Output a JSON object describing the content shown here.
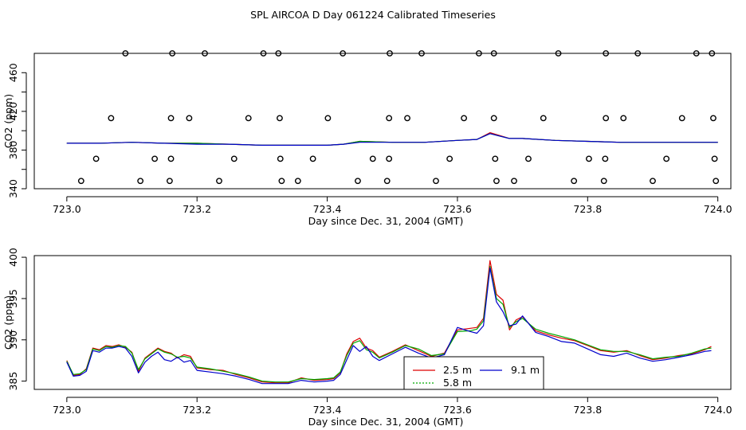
{
  "title": "SPL AIRCOA D  Day 061224  Calibrated Timeseries",
  "chart_data": [
    {
      "type": "scatter",
      "xlabel": "Day since Dec. 31, 2004 (GMT)",
      "ylabel": "CO2 (ppm)",
      "xlim": [
        722.95,
        724.02
      ],
      "ylim": [
        340,
        480
      ],
      "xticks": [
        "723.0",
        "723.2",
        "723.4",
        "723.6",
        "723.8",
        "724.0"
      ],
      "yticks": [
        "340",
        "380",
        "420",
        "460"
      ],
      "yticks_minor": [
        360,
        400,
        440
      ],
      "cal_points": {
        "x480": [
          723.09,
          723.162,
          723.212,
          723.302,
          723.325,
          723.424,
          723.496,
          723.545,
          723.633,
          723.656,
          723.755,
          723.828,
          723.877,
          723.967,
          723.991
        ],
        "x413": [
          723.068,
          723.16,
          723.188,
          723.279,
          723.327,
          723.401,
          723.495,
          723.523,
          723.61,
          723.656,
          723.732,
          723.828,
          723.855,
          723.945,
          723.993
        ],
        "x371": [
          723.045,
          723.135,
          723.16,
          723.257,
          723.328,
          723.378,
          723.47,
          723.495,
          723.588,
          723.658,
          723.709,
          723.802,
          723.827,
          723.921,
          723.995
        ],
        "x348": [
          723.022,
          723.113,
          723.158,
          723.234,
          723.33,
          723.355,
          723.447,
          723.492,
          723.567,
          723.66,
          723.687,
          723.779,
          723.825,
          723.9,
          723.997
        ]
      },
      "series": [
        {
          "name": "2.5 m",
          "color": "#dd0000",
          "x": [
            723.0,
            723.05,
            723.1,
            723.15,
            723.2,
            723.25,
            723.3,
            723.35,
            723.4,
            723.425,
            723.45,
            723.5,
            723.55,
            723.6,
            723.63,
            723.65,
            723.68,
            723.7,
            723.75,
            723.8,
            723.85,
            723.9,
            723.95,
            724.0
          ],
          "y": [
            387,
            387,
            388,
            387,
            387,
            386,
            385,
            385,
            385,
            386,
            389,
            388,
            388,
            390,
            391,
            398,
            392,
            392,
            390,
            389,
            388,
            388,
            388,
            388
          ]
        },
        {
          "name": "5.8 m",
          "color": "#00aa00",
          "x": [
            723.0,
            723.05,
            723.1,
            723.15,
            723.2,
            723.25,
            723.3,
            723.35,
            723.4,
            723.425,
            723.45,
            723.5,
            723.55,
            723.6,
            723.63,
            723.65,
            723.68,
            723.7,
            723.75,
            723.8,
            723.85,
            723.9,
            723.95,
            724.0
          ],
          "y": [
            387,
            387,
            388,
            387,
            387,
            386,
            385,
            385,
            385,
            386,
            389,
            388,
            388,
            390,
            391,
            397,
            392,
            392,
            390,
            389,
            388,
            388,
            388,
            388
          ]
        },
        {
          "name": "9.1 m",
          "color": "#0000cc",
          "x": [
            723.0,
            723.05,
            723.1,
            723.15,
            723.2,
            723.25,
            723.3,
            723.35,
            723.4,
            723.425,
            723.45,
            723.5,
            723.55,
            723.6,
            723.63,
            723.65,
            723.68,
            723.7,
            723.75,
            723.8,
            723.85,
            723.9,
            723.95,
            724.0
          ],
          "y": [
            387,
            387,
            388,
            387,
            386,
            386,
            385,
            385,
            385,
            386,
            388,
            388,
            388,
            390,
            391,
            397,
            392,
            392,
            390,
            389,
            388,
            388,
            388,
            388
          ]
        }
      ]
    },
    {
      "type": "line",
      "xlabel": "Day since Dec. 31, 2004 (GMT)",
      "ylabel": "CO2 (ppm)",
      "xlim": [
        722.95,
        724.02
      ],
      "ylim": [
        384,
        400.2
      ],
      "xticks": [
        "723.0",
        "723.2",
        "723.4",
        "723.6",
        "723.8",
        "724.0"
      ],
      "yticks": [
        "385",
        "390",
        "395",
        "400"
      ],
      "legend": {
        "position": "bottom-center"
      },
      "series": [
        {
          "name": "2.5 m",
          "color": "#dd0000",
          "x": [
            723.0,
            723.01,
            723.02,
            723.03,
            723.04,
            723.05,
            723.06,
            723.07,
            723.08,
            723.09,
            723.1,
            723.11,
            723.12,
            723.13,
            723.14,
            723.15,
            723.16,
            723.17,
            723.18,
            723.19,
            723.2,
            723.22,
            723.24,
            723.26,
            723.28,
            723.3,
            723.32,
            723.34,
            723.36,
            723.38,
            723.4,
            723.41,
            723.42,
            723.43,
            723.44,
            723.45,
            723.46,
            723.47,
            723.48,
            723.5,
            723.52,
            723.54,
            723.56,
            723.58,
            723.6,
            723.62,
            723.63,
            723.64,
            723.65,
            723.66,
            723.67,
            723.68,
            723.69,
            723.7,
            723.72,
            723.74,
            723.76,
            723.78,
            723.8,
            723.82,
            723.84,
            723.86,
            723.88,
            723.9,
            723.92,
            723.94,
            723.96,
            723.98,
            723.99
          ],
          "y": [
            387.5,
            385.7,
            385.8,
            386.5,
            389.0,
            388.8,
            389.3,
            389.2,
            389.4,
            389.1,
            388.5,
            386.2,
            387.8,
            388.4,
            389.0,
            388.6,
            388.4,
            387.8,
            388.2,
            388.0,
            386.6,
            386.4,
            386.3,
            385.8,
            385.4,
            384.9,
            384.8,
            384.8,
            385.4,
            385.1,
            385.2,
            385.3,
            386.0,
            388.3,
            389.8,
            390.2,
            389.0,
            388.7,
            387.9,
            388.6,
            389.4,
            388.7,
            388.0,
            388.4,
            391.2,
            391.4,
            391.5,
            392.6,
            399.6,
            395.5,
            394.8,
            391.2,
            392.4,
            392.8,
            391.1,
            390.6,
            390.2,
            389.9,
            389.3,
            388.7,
            388.5,
            388.7,
            388.1,
            387.6,
            387.8,
            388.1,
            388.3,
            388.8,
            389.2
          ]
        },
        {
          "name": "5.8 m",
          "color": "#00aa00",
          "x": [
            723.0,
            723.01,
            723.02,
            723.03,
            723.04,
            723.05,
            723.06,
            723.07,
            723.08,
            723.09,
            723.1,
            723.11,
            723.12,
            723.13,
            723.14,
            723.15,
            723.16,
            723.17,
            723.18,
            723.19,
            723.2,
            723.22,
            723.24,
            723.26,
            723.28,
            723.3,
            723.32,
            723.34,
            723.36,
            723.38,
            723.4,
            723.41,
            723.42,
            723.43,
            723.44,
            723.45,
            723.46,
            723.47,
            723.48,
            723.5,
            723.52,
            723.54,
            723.56,
            723.58,
            723.6,
            723.62,
            723.63,
            723.64,
            723.65,
            723.66,
            723.67,
            723.68,
            723.69,
            723.7,
            723.72,
            723.74,
            723.76,
            723.78,
            723.8,
            723.82,
            723.84,
            723.86,
            723.88,
            723.9,
            723.92,
            723.94,
            723.96,
            723.98,
            723.99
          ],
          "y": [
            387.4,
            385.8,
            385.9,
            386.4,
            388.9,
            388.7,
            389.2,
            389.1,
            389.3,
            389.2,
            388.4,
            386.4,
            387.7,
            388.3,
            388.9,
            388.5,
            388.3,
            387.9,
            388.0,
            387.8,
            386.7,
            386.5,
            386.2,
            385.9,
            385.5,
            385.0,
            384.9,
            384.9,
            385.3,
            385.2,
            385.3,
            385.4,
            386.1,
            388.1,
            389.6,
            389.9,
            388.8,
            388.5,
            387.8,
            388.5,
            389.3,
            388.9,
            388.1,
            388.3,
            391.0,
            391.1,
            391.3,
            392.3,
            398.9,
            395.0,
            394.3,
            391.5,
            392.2,
            392.6,
            391.3,
            390.8,
            390.4,
            390.0,
            389.4,
            388.8,
            388.6,
            388.6,
            388.2,
            387.7,
            387.9,
            388.0,
            388.4,
            388.9,
            389.0
          ]
        },
        {
          "name": "9.1 m",
          "color": "#0000cc",
          "x": [
            723.0,
            723.01,
            723.02,
            723.03,
            723.04,
            723.05,
            723.06,
            723.07,
            723.08,
            723.09,
            723.1,
            723.11,
            723.12,
            723.13,
            723.14,
            723.15,
            723.16,
            723.17,
            723.18,
            723.19,
            723.2,
            723.22,
            723.24,
            723.26,
            723.28,
            723.3,
            723.32,
            723.34,
            723.36,
            723.38,
            723.4,
            723.41,
            723.42,
            723.43,
            723.44,
            723.45,
            723.46,
            723.47,
            723.48,
            723.5,
            723.52,
            723.54,
            723.56,
            723.58,
            723.6,
            723.62,
            723.63,
            723.64,
            723.65,
            723.66,
            723.67,
            723.68,
            723.69,
            723.7,
            723.72,
            723.74,
            723.76,
            723.78,
            723.8,
            723.82,
            723.84,
            723.86,
            723.88,
            723.9,
            723.92,
            723.94,
            723.96,
            723.98,
            723.99
          ],
          "y": [
            387.3,
            385.6,
            385.7,
            386.2,
            388.7,
            388.5,
            389.0,
            389.0,
            389.2,
            389.0,
            388.0,
            386.0,
            387.3,
            388.0,
            388.5,
            387.6,
            387.4,
            387.9,
            387.3,
            387.5,
            386.3,
            386.1,
            385.9,
            385.6,
            385.2,
            384.7,
            384.7,
            384.7,
            385.1,
            384.9,
            385.0,
            385.1,
            385.8,
            387.6,
            389.3,
            388.6,
            389.2,
            388.0,
            387.5,
            388.3,
            389.1,
            388.4,
            387.8,
            388.2,
            391.5,
            391.0,
            390.8,
            391.7,
            398.7,
            394.6,
            393.4,
            391.7,
            391.9,
            392.9,
            390.9,
            390.4,
            389.8,
            389.6,
            388.9,
            388.2,
            388.0,
            388.4,
            387.8,
            387.4,
            387.6,
            387.9,
            388.2,
            388.6,
            388.7
          ]
        }
      ]
    }
  ]
}
